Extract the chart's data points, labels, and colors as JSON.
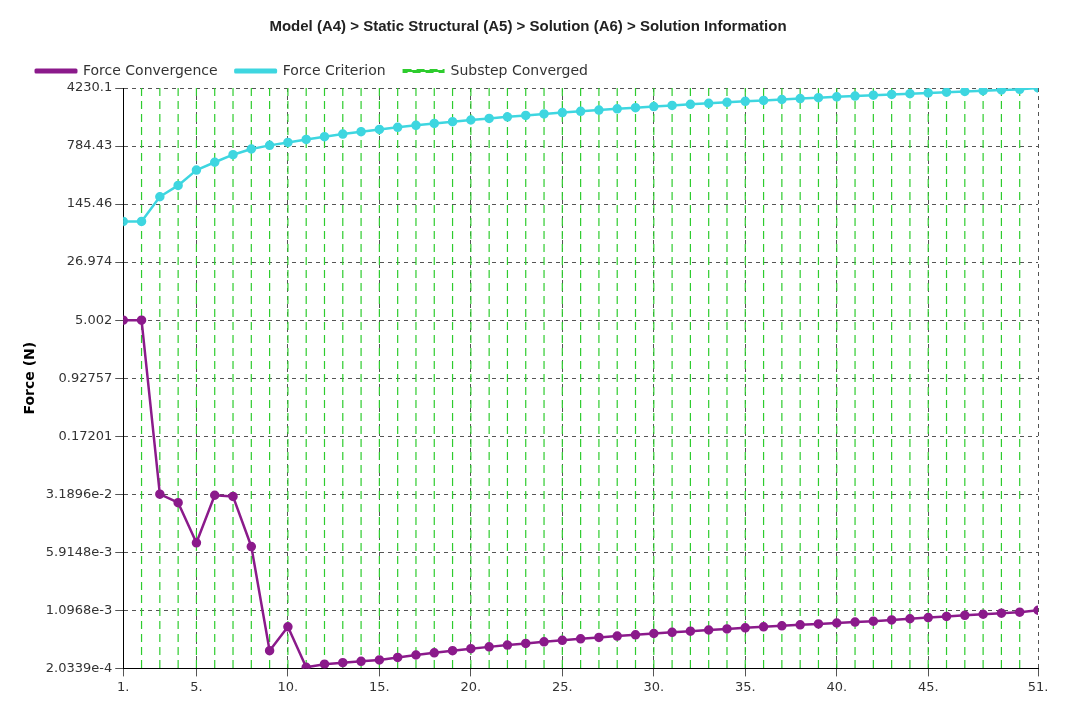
{
  "chart_data": {
    "type": "line",
    "title": "Model (A4) > Static Structural (A5) > Solution (A6) > Solution Information",
    "ylabel": "Force (N)",
    "x": [
      1,
      2,
      3,
      4,
      5,
      6,
      7,
      8,
      9,
      10,
      11,
      12,
      13,
      14,
      15,
      16,
      17,
      18,
      19,
      20,
      21,
      22,
      23,
      24,
      25,
      26,
      27,
      28,
      29,
      30,
      31,
      32,
      33,
      34,
      35,
      36,
      37,
      38,
      39,
      40,
      41,
      42,
      43,
      44,
      45,
      46,
      47,
      48,
      49,
      50,
      51
    ],
    "series": [
      {
        "name": "Force Convergence",
        "color": "#8b1a8b",
        "values": [
          5.0,
          5.0,
          0.032,
          0.025,
          0.0078,
          0.031,
          0.03,
          0.007,
          0.00034,
          0.00068,
          0.00021,
          0.00023,
          0.00024,
          0.00025,
          0.00026,
          0.00028,
          0.0003,
          0.00032,
          0.00034,
          0.00036,
          0.00038,
          0.0004,
          0.00042,
          0.00044,
          0.00046,
          0.00048,
          0.0005,
          0.00052,
          0.00054,
          0.00056,
          0.00058,
          0.0006,
          0.00062,
          0.00064,
          0.00066,
          0.00068,
          0.0007,
          0.00072,
          0.00074,
          0.00076,
          0.00078,
          0.0008,
          0.00083,
          0.00086,
          0.00089,
          0.00092,
          0.00095,
          0.00098,
          0.00101,
          0.00104,
          0.0011
        ]
      },
      {
        "name": "Force Criterion",
        "color": "#3ed6e0",
        "values": [
          88,
          88,
          180,
          250,
          390,
          490,
          610,
          720,
          800,
          870,
          950,
          1030,
          1110,
          1190,
          1270,
          1350,
          1430,
          1510,
          1590,
          1670,
          1750,
          1830,
          1910,
          1990,
          2070,
          2150,
          2230,
          2310,
          2390,
          2470,
          2550,
          2630,
          2710,
          2790,
          2870,
          2950,
          3030,
          3110,
          3190,
          3270,
          3350,
          3430,
          3510,
          3590,
          3670,
          3750,
          3830,
          3910,
          3990,
          4070,
          4230
        ]
      }
    ],
    "log": "y",
    "grid": true,
    "legend": "top",
    "marker": "circle",
    "line_style": "solid",
    "xlim": [
      1,
      51
    ],
    "xticks": [
      {
        "value": 1,
        "label": "1."
      },
      {
        "value": 5,
        "label": "5."
      },
      {
        "value": 10,
        "label": "10."
      },
      {
        "value": 15,
        "label": "15."
      },
      {
        "value": 20,
        "label": "20."
      },
      {
        "value": 25,
        "label": "25."
      },
      {
        "value": 30,
        "label": "30."
      },
      {
        "value": 35,
        "label": "35."
      },
      {
        "value": 40,
        "label": "40."
      },
      {
        "value": 45,
        "label": "45."
      },
      {
        "value": 51,
        "label": "51."
      }
    ],
    "ylim": [
      0.00020339,
      4230.1
    ],
    "yticks": [
      {
        "value": 0.00020339,
        "label": "2.0339e-4"
      },
      {
        "value": 0.0010968,
        "label": "1.0968e-3"
      },
      {
        "value": 0.0059148,
        "label": "5.9148e-3"
      },
      {
        "value": 0.031896,
        "label": "3.1896e-2"
      },
      0.17201,
      0.92757,
      5.002,
      26.974,
      145.46,
      784.43,
      4230.1
    ],
    "ref_lines": [
      {
        "axis": "x",
        "value": 2,
        "label": "Substep Converged",
        "color": "#2ecc2e",
        "line_style": "dashed"
      },
      {
        "axis": "x",
        "value": 3,
        "color": "#2ecc2e",
        "line_style": "dashed"
      },
      {
        "axis": "x",
        "value": 4,
        "color": "#2ecc2e",
        "line_style": "dashed"
      },
      {
        "axis": "x",
        "value": 5,
        "color": "#2ecc2e",
        "line_style": "dashed"
      },
      {
        "axis": "x",
        "value": 6,
        "color": "#2ecc2e",
        "line_style": "dashed"
      },
      {
        "axis": "x",
        "value": 7,
        "color": "#2ecc2e",
        "line_style": "dashed"
      },
      {
        "axis": "x",
        "value": 8,
        "color": "#2ecc2e",
        "line_style": "dashed"
      },
      {
        "axis": "x",
        "value": 9,
        "color": "#2ecc2e",
        "line_style": "dashed"
      },
      {
        "axis": "x",
        "value": 10,
        "color": "#2ecc2e",
        "line_style": "dashed"
      },
      {
        "axis": "x",
        "value": 11,
        "color": "#2ecc2e",
        "line_style": "dashed"
      },
      {
        "axis": "x",
        "value": 12,
        "color": "#2ecc2e",
        "line_style": "dashed"
      },
      {
        "axis": "x",
        "value": 13,
        "color": "#2ecc2e",
        "line_style": "dashed"
      },
      {
        "axis": "x",
        "value": 14,
        "color": "#2ecc2e",
        "line_style": "dashed"
      },
      {
        "axis": "x",
        "value": 15,
        "color": "#2ecc2e",
        "line_style": "dashed"
      },
      {
        "axis": "x",
        "value": 16,
        "color": "#2ecc2e",
        "line_style": "dashed"
      },
      {
        "axis": "x",
        "value": 17,
        "color": "#2ecc2e",
        "line_style": "dashed"
      },
      {
        "axis": "x",
        "value": 18,
        "color": "#2ecc2e",
        "line_style": "dashed"
      },
      {
        "axis": "x",
        "value": 19,
        "color": "#2ecc2e",
        "line_style": "dashed"
      },
      {
        "axis": "x",
        "value": 20,
        "color": "#2ecc2e",
        "line_style": "dashed"
      },
      {
        "axis": "x",
        "value": 21,
        "color": "#2ecc2e",
        "line_style": "dashed"
      },
      {
        "axis": "x",
        "value": 22,
        "color": "#2ecc2e",
        "line_style": "dashed"
      },
      {
        "axis": "x",
        "value": 23,
        "color": "#2ecc2e",
        "line_style": "dashed"
      },
      {
        "axis": "x",
        "value": 24,
        "color": "#2ecc2e",
        "line_style": "dashed"
      },
      {
        "axis": "x",
        "value": 25,
        "color": "#2ecc2e",
        "line_style": "dashed"
      },
      {
        "axis": "x",
        "value": 26,
        "color": "#2ecc2e",
        "line_style": "dashed"
      },
      {
        "axis": "x",
        "value": 27,
        "color": "#2ecc2e",
        "line_style": "dashed"
      },
      {
        "axis": "x",
        "value": 28,
        "color": "#2ecc2e",
        "line_style": "dashed"
      },
      {
        "axis": "x",
        "value": 29,
        "color": "#2ecc2e",
        "line_style": "dashed"
      },
      {
        "axis": "x",
        "value": 30,
        "color": "#2ecc2e",
        "line_style": "dashed"
      },
      {
        "axis": "x",
        "value": 31,
        "color": "#2ecc2e",
        "line_style": "dashed"
      },
      {
        "axis": "x",
        "value": 32,
        "color": "#2ecc2e",
        "line_style": "dashed"
      },
      {
        "axis": "x",
        "value": 33,
        "color": "#2ecc2e",
        "line_style": "dashed"
      },
      {
        "axis": "x",
        "value": 34,
        "color": "#2ecc2e",
        "line_style": "dashed"
      },
      {
        "axis": "x",
        "value": 35,
        "color": "#2ecc2e",
        "line_style": "dashed"
      },
      {
        "axis": "x",
        "value": 36,
        "color": "#2ecc2e",
        "line_style": "dashed"
      },
      {
        "axis": "x",
        "value": 37,
        "color": "#2ecc2e",
        "line_style": "dashed"
      },
      {
        "axis": "x",
        "value": 38,
        "color": "#2ecc2e",
        "line_style": "dashed"
      },
      {
        "axis": "x",
        "value": 39,
        "color": "#2ecc2e",
        "line_style": "dashed"
      },
      {
        "axis": "x",
        "value": 40,
        "color": "#2ecc2e",
        "line_style": "dashed"
      },
      {
        "axis": "x",
        "value": 41,
        "color": "#2ecc2e",
        "line_style": "dashed"
      },
      {
        "axis": "x",
        "value": 42,
        "color": "#2ecc2e",
        "line_style": "dashed"
      },
      {
        "axis": "x",
        "value": 43,
        "color": "#2ecc2e",
        "line_style": "dashed"
      },
      {
        "axis": "x",
        "value": 44,
        "color": "#2ecc2e",
        "line_style": "dashed"
      },
      {
        "axis": "x",
        "value": 45,
        "color": "#2ecc2e",
        "line_style": "dashed"
      },
      {
        "axis": "x",
        "value": 46,
        "color": "#2ecc2e",
        "line_style": "dashed"
      },
      {
        "axis": "x",
        "value": 47,
        "color": "#2ecc2e",
        "line_style": "dashed"
      },
      {
        "axis": "x",
        "value": 48,
        "color": "#2ecc2e",
        "line_style": "dashed"
      },
      {
        "axis": "x",
        "value": 49,
        "color": "#2ecc2e",
        "line_style": "dashed"
      },
      {
        "axis": "x",
        "value": 50,
        "color": "#2ecc2e",
        "line_style": "dashed"
      }
    ]
  }
}
